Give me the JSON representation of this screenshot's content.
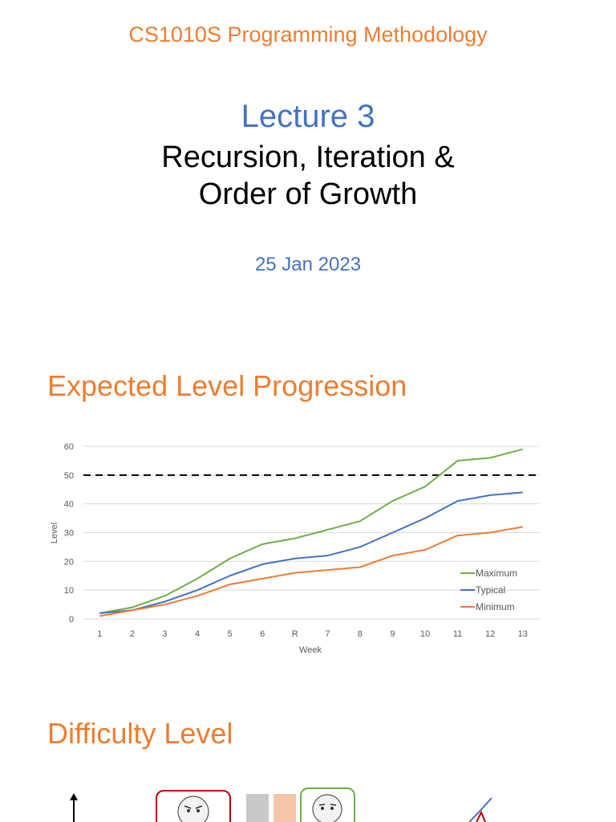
{
  "header": {
    "course": "CS1010S Programming Methodology",
    "lecture": "Lecture 3",
    "title_line1": "Recursion, Iteration &",
    "title_line2": "Order of Growth",
    "date": "25 Jan 2023"
  },
  "sections": {
    "progression_heading": "Expected Level Progression",
    "difficulty_heading": "Difficulty Level"
  },
  "colors": {
    "maximum": "#70AD47",
    "typical": "#4472C4",
    "minimum": "#ED7D31",
    "heading": "#ED7D31",
    "lecture": "#4472C4"
  },
  "chart_data": {
    "type": "line",
    "xlabel": "Week",
    "ylabel": "Level",
    "categories": [
      "1",
      "2",
      "3",
      "4",
      "5",
      "6",
      "R",
      "7",
      "8",
      "9",
      "10",
      "11",
      "12",
      "13"
    ],
    "ylim": [
      0,
      60
    ],
    "yticks": [
      0,
      10,
      20,
      30,
      40,
      50,
      60
    ],
    "grid": true,
    "legend": "bottom-right",
    "reference_line": {
      "value": 50,
      "style": "dashed"
    },
    "series": [
      {
        "name": "Maximum",
        "color": "#70AD47",
        "values": [
          2,
          4,
          8,
          14,
          21,
          26,
          28,
          31,
          34,
          41,
          46,
          55,
          56,
          59
        ]
      },
      {
        "name": "Typical",
        "color": "#4472C4",
        "values": [
          2,
          3,
          6,
          10,
          15,
          19,
          21,
          22,
          25,
          30,
          35,
          41,
          43,
          44
        ]
      },
      {
        "name": "Minimum",
        "color": "#ED7D31",
        "values": [
          1,
          3,
          5,
          8,
          12,
          14,
          16,
          17,
          18,
          22,
          24,
          29,
          30,
          32
        ]
      }
    ]
  }
}
